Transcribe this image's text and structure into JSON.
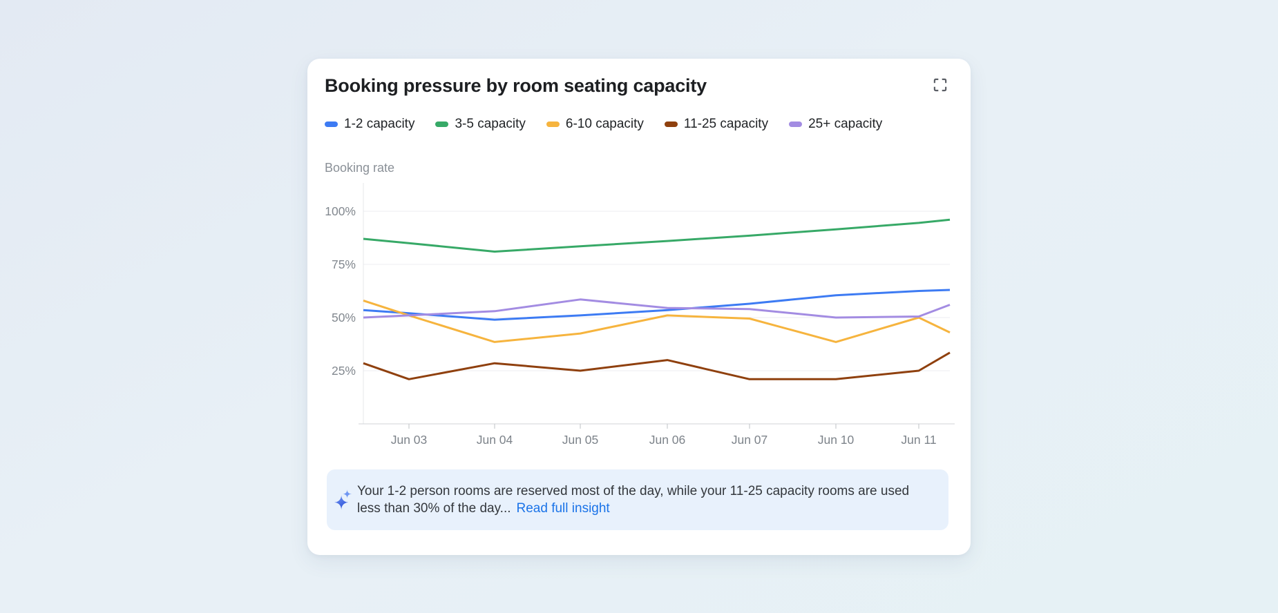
{
  "card": {
    "title": "Booking pressure by room seating capacity"
  },
  "chart_data": {
    "type": "line",
    "title": "Booking pressure by room seating capacity",
    "ylabel": "Booking rate",
    "unit": "percent",
    "grid": "horizontal",
    "legend_position": "top-left",
    "y_axis": {
      "min": 0,
      "max": 100,
      "tick_values": [
        25,
        50,
        75,
        100
      ],
      "tick_labels": [
        "25%",
        "50%",
        "75%",
        "100%"
      ]
    },
    "categories": [
      "Jun 03",
      "Jun 04",
      "Jun 05",
      "Jun 06",
      "Jun 07",
      "Jun 10",
      "Jun 11"
    ],
    "x_points": [
      "plot-left-edge",
      "Jun 03",
      "Jun 04",
      "Jun 05",
      "Jun 06",
      "Jun 07",
      "Jun 10",
      "Jun 11",
      "plot-right-edge"
    ],
    "series": [
      {
        "name": "1-2 capacity",
        "color": "#3d7bf3",
        "values": [
          53.5,
          52,
          49,
          51,
          53.5,
          56.5,
          60.5,
          62.5,
          63
        ]
      },
      {
        "name": "3-5 capacity",
        "color": "#37a967",
        "values": [
          87,
          85,
          81,
          83.5,
          86,
          88.5,
          91.5,
          94.5,
          96
        ]
      },
      {
        "name": "6-10 capacity",
        "color": "#f6b43e",
        "values": [
          58,
          51,
          38.5,
          42.5,
          51,
          49.5,
          38.5,
          50,
          43
        ]
      },
      {
        "name": "11-25 capacity",
        "color": "#8f400e",
        "values": [
          28.5,
          21,
          28.5,
          25,
          30,
          21,
          21,
          25,
          33.5
        ]
      },
      {
        "name": "25+ capacity",
        "color": "#a38ce2",
        "values": [
          50,
          51,
          53,
          58.5,
          54.5,
          54,
          50,
          50.5,
          56
        ]
      }
    ]
  },
  "insight": {
    "text": "Your 1-2 person rooms are reserved most of the day, while your 11-25 capacity rooms are used less than 30% of the day...",
    "link_label": "Read full insight"
  },
  "colors": {
    "link": "#1a73e8",
    "insight_background": "#e8f1fc",
    "gridline": "#edeef2",
    "axis_line": "#d9dcdf",
    "tick_label": "#82888f"
  }
}
